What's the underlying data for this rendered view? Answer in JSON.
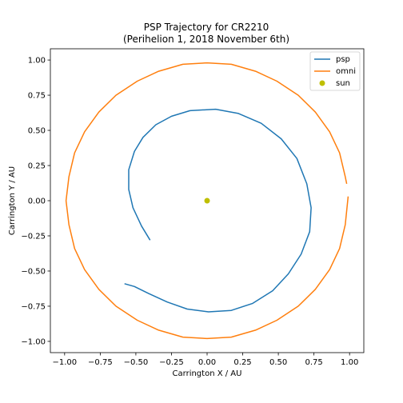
{
  "chart_data": {
    "type": "line",
    "title": "PSP Trajectory for CR2210",
    "subtitle": "(Perihelion 1, 2018 November 6th)",
    "xlabel": "Carrington X / AU",
    "ylabel": "Carrington Y / AU",
    "xlim": [
      -1.1,
      1.1
    ],
    "ylim": [
      -1.08,
      1.08
    ],
    "xticks": [
      -1.0,
      -0.75,
      -0.5,
      -0.25,
      0.0,
      0.25,
      0.5,
      0.75,
      1.0
    ],
    "xtick_labels": [
      "−1.00",
      "−0.75",
      "−0.50",
      "−0.25",
      "0.00",
      "0.25",
      "0.50",
      "0.75",
      "1.00"
    ],
    "yticks": [
      -1.0,
      -0.75,
      -0.5,
      -0.25,
      0.0,
      0.25,
      0.5,
      0.75,
      1.0
    ],
    "ytick_labels": [
      "−1.00",
      "−0.75",
      "−0.50",
      "−0.25",
      "0.00",
      "0.25",
      "0.50",
      "0.75",
      "1.00"
    ],
    "grid": false,
    "legend_position": "top-right",
    "series": [
      {
        "name": "psp",
        "color": "#1f77b4",
        "x": [
          -0.4,
          -0.46,
          -0.52,
          -0.55,
          -0.55,
          -0.51,
          -0.45,
          -0.36,
          -0.25,
          -0.12,
          0.06,
          0.22,
          0.38,
          0.52,
          0.63,
          0.7,
          0.73,
          0.72,
          0.66,
          0.57,
          0.46,
          0.32,
          0.17,
          0.01,
          -0.14,
          -0.28,
          -0.41,
          -0.51,
          -0.58
        ],
        "y": [
          -0.28,
          -0.18,
          -0.05,
          0.08,
          0.22,
          0.35,
          0.45,
          0.54,
          0.6,
          0.64,
          0.65,
          0.62,
          0.55,
          0.44,
          0.3,
          0.12,
          -0.05,
          -0.22,
          -0.38,
          -0.52,
          -0.64,
          -0.73,
          -0.78,
          -0.79,
          -0.77,
          -0.72,
          -0.66,
          -0.61,
          -0.59
        ]
      },
      {
        "name": "omni",
        "color": "#ff7f0e",
        "x": [
          0.99,
          0.97,
          0.93,
          0.86,
          0.76,
          0.64,
          0.49,
          0.34,
          0.17,
          0.0,
          -0.17,
          -0.34,
          -0.49,
          -0.64,
          -0.76,
          -0.86,
          -0.93,
          -0.97,
          -0.99,
          -0.97,
          -0.93,
          -0.86,
          -0.76,
          -0.64,
          -0.49,
          -0.34,
          -0.17,
          0.0,
          0.17,
          0.34,
          0.49,
          0.64,
          0.76,
          0.86,
          0.93,
          0.97,
          0.98
        ],
        "y": [
          0.03,
          -0.17,
          -0.34,
          -0.49,
          -0.63,
          -0.75,
          -0.85,
          -0.92,
          -0.97,
          -0.98,
          -0.97,
          -0.92,
          -0.85,
          -0.75,
          -0.63,
          -0.49,
          -0.34,
          -0.17,
          0.0,
          0.17,
          0.34,
          0.49,
          0.63,
          0.75,
          0.85,
          0.92,
          0.97,
          0.98,
          0.97,
          0.92,
          0.85,
          0.75,
          0.63,
          0.49,
          0.34,
          0.17,
          0.12
        ]
      },
      {
        "name": "sun",
        "color": "#bfbf00",
        "kind": "scatter",
        "x": [
          0.0
        ],
        "y": [
          0.0
        ]
      }
    ]
  }
}
